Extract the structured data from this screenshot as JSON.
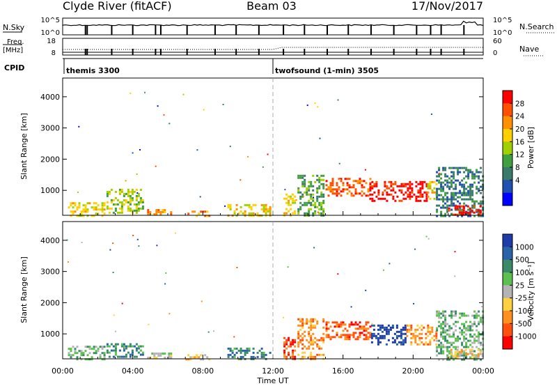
{
  "header": {
    "station": "Clyde River (fitACF)",
    "beam": "Beam 03",
    "date": "17/Nov/2017"
  },
  "ctrl_panel_1": {
    "left_label": "N.Sky",
    "left_ticks": [
      "10^5",
      "10^0"
    ],
    "right_ticks": [
      "10^5",
      "10^0"
    ],
    "right_label": "N.Search"
  },
  "ctrl_panel_2": {
    "left_label_1": "Freq.",
    "left_label_2": "[MHz]",
    "left_ticks": [
      "18",
      "8"
    ],
    "right_ticks": [
      "60",
      "0"
    ],
    "right_label": "Nave"
  },
  "cpid": {
    "label": "CPID",
    "modes": [
      {
        "name": "themis 3300",
        "start_hour": 0.0
      },
      {
        "name": "twofsound (1-min) 3505",
        "start_hour": 12.0
      }
    ]
  },
  "chart_data": [
    {
      "type": "heatmap",
      "name": "power",
      "ylabel": "Slant Range [km]",
      "yticks": [
        1000,
        2000,
        3000,
        4000
      ],
      "ylim": [
        200,
        4600
      ],
      "xlim_hours": [
        0,
        24
      ],
      "colorbar": {
        "label": "Power [dB]",
        "ticks": [
          "28",
          "24",
          "20",
          "16",
          "12",
          "8",
          "4"
        ],
        "colors": [
          "#ff0000",
          "#ff5000",
          "#ff9000",
          "#ffd000",
          "#a0d000",
          "#40a040",
          "#3a7a6a",
          "#2050b0",
          "#0000ff"
        ]
      },
      "regions": [
        {
          "x0": 0.3,
          "x1": 2.4,
          "y0": 200,
          "y1": 620,
          "c": 3
        },
        {
          "x0": 2.5,
          "x1": 4.6,
          "y0": 250,
          "y1": 1050,
          "c": 4
        },
        {
          "x0": 4.7,
          "x1": 6.2,
          "y0": 200,
          "y1": 400,
          "c": 2
        },
        {
          "x0": 7.0,
          "x1": 8.4,
          "y0": 200,
          "y1": 350,
          "c": 2
        },
        {
          "x0": 9.4,
          "x1": 11.8,
          "y0": 200,
          "y1": 560,
          "c": 3
        },
        {
          "x0": 12.6,
          "x1": 13.3,
          "y0": 200,
          "y1": 900,
          "c": 3
        },
        {
          "x0": 13.4,
          "x1": 14.9,
          "y0": 200,
          "y1": 1500,
          "c": 5
        },
        {
          "x0": 15.0,
          "x1": 17.6,
          "y0": 800,
          "y1": 1400,
          "c": 1
        },
        {
          "x0": 17.5,
          "x1": 20.8,
          "y0": 650,
          "y1": 1300,
          "c": 0
        },
        {
          "x0": 20.8,
          "x1": 21.3,
          "y0": 700,
          "y1": 1300,
          "c": 3
        },
        {
          "x0": 21.3,
          "x1": 24.0,
          "y0": 200,
          "y1": 1750,
          "c": 6
        },
        {
          "x0": 22.0,
          "x1": 24.0,
          "y0": 220,
          "y1": 520,
          "c": 0
        }
      ]
    },
    {
      "type": "heatmap",
      "name": "velocity",
      "ylabel": "Slant Range [km]",
      "yticks": [
        1000,
        2000,
        3000,
        4000
      ],
      "ylim": [
        200,
        4600
      ],
      "xlim_hours": [
        0,
        24
      ],
      "xticks": [
        "00:00",
        "04:00",
        "08:00",
        "12:00",
        "16:00",
        "20:00",
        "00:00"
      ],
      "xlabel": "Time UT",
      "colorbar": {
        "label": "Velocity [m s⁻¹]",
        "ticks": [
          "1000",
          "500",
          "100",
          "25",
          "-25",
          "-100",
          "-500",
          "-1000"
        ],
        "colors": [
          "#1e3ca8",
          "#2a62a8",
          "#3a8a6a",
          "#5cc050",
          "#b4b4b4",
          "#ffd040",
          "#ff9020",
          "#ff5010",
          "#ff0000"
        ]
      },
      "regions": [
        {
          "x0": 0.3,
          "x1": 2.4,
          "y0": 200,
          "y1": 620,
          "c": 3
        },
        {
          "x0": 2.5,
          "x1": 4.6,
          "y0": 250,
          "y1": 700,
          "c": 2
        },
        {
          "x0": 4.7,
          "x1": 6.2,
          "y0": 200,
          "y1": 400,
          "c": 4
        },
        {
          "x0": 7.0,
          "x1": 8.4,
          "y0": 200,
          "y1": 350,
          "c": 5
        },
        {
          "x0": 9.4,
          "x1": 11.8,
          "y0": 200,
          "y1": 560,
          "c": 2
        },
        {
          "x0": 12.6,
          "x1": 13.3,
          "y0": 200,
          "y1": 900,
          "c": 7
        },
        {
          "x0": 13.4,
          "x1": 14.9,
          "y0": 200,
          "y1": 1500,
          "c": 6
        },
        {
          "x0": 15.0,
          "x1": 17.6,
          "y0": 800,
          "y1": 1400,
          "c": 7
        },
        {
          "x0": 17.6,
          "x1": 19.6,
          "y0": 650,
          "y1": 1300,
          "c": 0
        },
        {
          "x0": 19.6,
          "x1": 21.3,
          "y0": 650,
          "y1": 1300,
          "c": 6
        },
        {
          "x0": 21.3,
          "x1": 24.0,
          "y0": 200,
          "y1": 1750,
          "c": 3
        },
        {
          "x0": 22.0,
          "x1": 24.0,
          "y0": 220,
          "y1": 520,
          "c": 5
        }
      ]
    }
  ]
}
